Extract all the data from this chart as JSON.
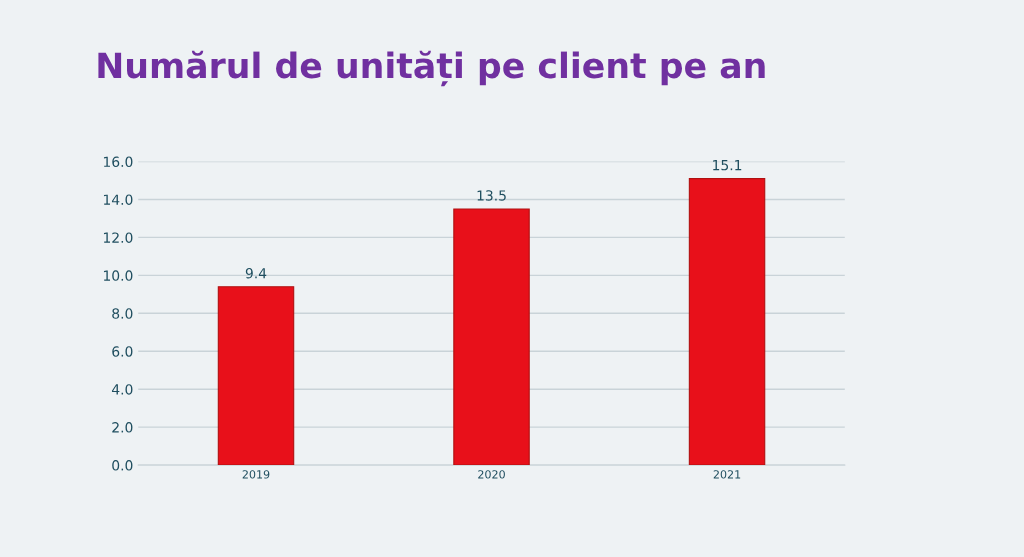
{
  "chart_data": {
    "type": "bar",
    "title": "Numărul de unități pe client pe an",
    "categories": [
      "2019",
      "2020",
      "2021"
    ],
    "values": [
      9.4,
      13.5,
      15.1
    ],
    "color": "#e8101a",
    "ylim": [
      0,
      16
    ],
    "yticks": [
      {
        "value": 0,
        "label": "0.0"
      },
      {
        "value": 2,
        "label": "2.0"
      },
      {
        "value": 4,
        "label": "4.0"
      },
      {
        "value": 6,
        "label": "6.0"
      },
      {
        "value": 8,
        "label": "8.0"
      },
      {
        "value": 10,
        "label": "10.0"
      },
      {
        "value": 12,
        "label": "12.0"
      },
      {
        "value": 14,
        "label": "14.0"
      },
      {
        "value": 16,
        "label": "16.0"
      }
    ],
    "grid": "y",
    "data_labels": true
  }
}
